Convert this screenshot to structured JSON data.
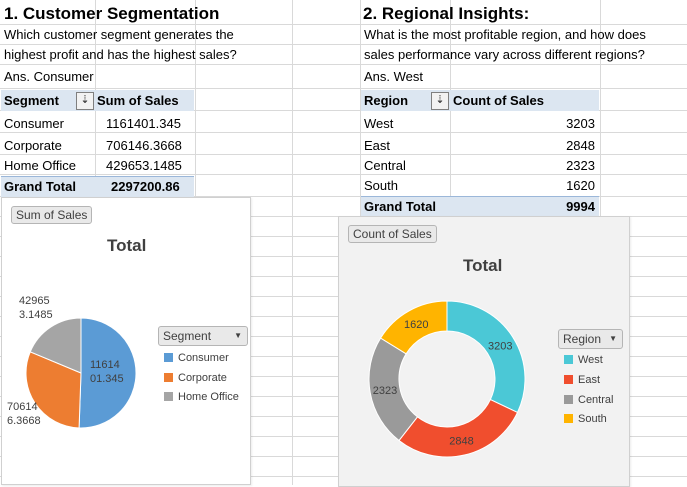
{
  "sheet": {
    "left": {
      "heading": "1. Customer Segmentation",
      "question_line1": "Which customer segment generates the",
      "question_line2": "highest profit and has the highest sales?",
      "answer": "Ans. Consumer",
      "pivot": {
        "col1": "Segment",
        "col2": "Sum of Sales",
        "rows": [
          {
            "label": "Consumer",
            "value": "1161401.345"
          },
          {
            "label": "Corporate",
            "value": "706146.3668"
          },
          {
            "label": "Home Office",
            "value": "429653.1485"
          }
        ],
        "total_label": "Grand Total",
        "total_value": "2297200.86"
      }
    },
    "right": {
      "heading": "2. Regional Insights:",
      "question_line1": "What is the most profitable region, and how does",
      "question_line2": "sales performance vary across different regions?",
      "answer": "Ans. West",
      "pivot": {
        "col1": "Region",
        "col2": "Count of Sales",
        "rows": [
          {
            "label": "West",
            "value": "3203"
          },
          {
            "label": "East",
            "value": "2848"
          },
          {
            "label": "Central",
            "value": "2323"
          },
          {
            "label": "South",
            "value": "1620"
          }
        ],
        "total_label": "Grand Total",
        "total_value": "9994"
      }
    },
    "filter_icon": "sort-filter-icon"
  },
  "chart_data": [
    {
      "type": "pie",
      "field_button": "Sum of Sales",
      "title": "Total",
      "legend_title": "Segment",
      "categories": [
        "Consumer",
        "Corporate",
        "Home Office"
      ],
      "values": [
        1161401.345,
        706146.3668,
        429653.1485
      ],
      "colors": [
        "#5b9bd5",
        "#ed7d31",
        "#a5a5a5"
      ],
      "data_labels": [
        [
          "11614",
          "01.345"
        ],
        [
          "70614",
          "6.3668"
        ],
        [
          "42965",
          "3.1485"
        ]
      ],
      "legend_position": "right"
    },
    {
      "type": "pie",
      "variant": "doughnut",
      "field_button": "Count of Sales",
      "title": "Total",
      "legend_title": "Region",
      "categories": [
        "West",
        "East",
        "Central",
        "South"
      ],
      "values": [
        3203,
        2848,
        2323,
        1620
      ],
      "colors": [
        "#4bc8d6",
        "#f04e2e",
        "#9a9a9a",
        "#ffb400"
      ],
      "data_labels": [
        "3203",
        "2848",
        "2323",
        "1620"
      ],
      "legend_position": "right"
    }
  ],
  "icons": {
    "dropdown": "chevron-down-icon"
  }
}
